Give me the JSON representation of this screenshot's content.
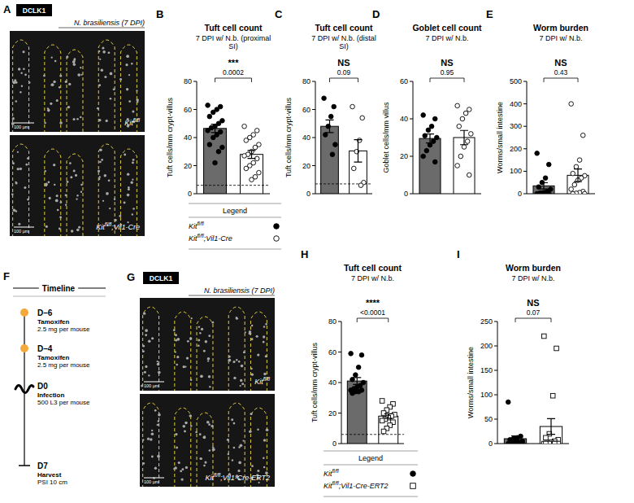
{
  "images": [
    {
      "letter": "A",
      "stain": "DCLK1",
      "title": "N. brasiliensis (7 DPI)",
      "panels": [
        {
          "label": {
            "base": "Kit",
            "sup": "fl/fl"
          },
          "scale": "100 µm"
        },
        {
          "label": {
            "base": "Kit",
            "sup": "fl/fl",
            "rest": ";Vil1-Cre"
          },
          "scale": "100 µm"
        }
      ]
    },
    {
      "letter": "G",
      "stain": "DCLK1",
      "title": "N. brasiliensis (7 DPI)",
      "panels": [
        {
          "label": {
            "base": "Kit",
            "sup": "fl/fl"
          },
          "scale": "100 µm"
        },
        {
          "label": {
            "base": "Kit",
            "sup": "fl/fl",
            "rest": ";Vil1-Cre-ERT2"
          },
          "scale": "100 µm"
        }
      ]
    }
  ],
  "timeline": {
    "letter": "F",
    "title": "Timeline",
    "events": [
      {
        "day": "D–6",
        "label": "Tamoxifen",
        "detail": "2.5 mg per mouse",
        "marker": "circle",
        "color": "#f5a93a"
      },
      {
        "day": "D–4",
        "label": "Tamoxifen",
        "detail": "2.5 mg per mouse",
        "marker": "circle",
        "color": "#f5a93a"
      },
      {
        "day": "D0",
        "label": "Infection",
        "detail": "500 L3 per mouse",
        "marker": "worm",
        "color": "#000000"
      },
      {
        "day": "D7",
        "label": "Harvest",
        "detail": "PSI 10 cm",
        "marker": "bar",
        "color": "#000000"
      }
    ]
  },
  "legends": [
    {
      "title": "Legend",
      "entries": [
        {
          "label": {
            "base": "Kit",
            "sup": "fl/fl"
          },
          "marker": "circle",
          "color": "#000000"
        },
        {
          "label": {
            "base": "Kit",
            "sup": "fl/fl",
            "rest": ";Vil1-Cre"
          },
          "marker": "circle",
          "color": "#ffffff"
        }
      ]
    },
    {
      "title": "Legend",
      "entries": [
        {
          "label": {
            "base": "Kit",
            "sup": "fl/fl"
          },
          "marker": "circle",
          "color": "#000000"
        },
        {
          "label": {
            "base": "Kit",
            "sup": "fl/fl",
            "rest": ";Vil1-Cre-ERT2"
          },
          "marker": "square",
          "color": "#ffffff"
        }
      ]
    }
  ],
  "chart_data": [
    {
      "letter": "B",
      "type": "bar",
      "title": "Tuft cell count",
      "subtitle": "7 DPI w/ N.b. (proximal SI)",
      "y_label": "Tuft cells/mm crypt-villus",
      "categories": [
        null,
        null
      ],
      "values": [
        46.5,
        28
      ],
      "errors": [
        3,
        2.8
      ],
      "colors": [
        "#6b6b6b",
        "#ffffff"
      ],
      "points": [
        [
          63,
          62,
          60,
          58,
          55,
          52,
          50,
          48,
          47,
          45,
          44,
          42,
          40,
          35,
          33,
          30,
          22
        ],
        [
          48,
          45,
          42,
          40,
          38,
          35,
          33,
          30,
          28,
          27,
          25,
          22,
          20,
          18,
          15,
          12,
          10
        ]
      ],
      "baseline": 6,
      "significance": "***",
      "p_value": "0.0002",
      "ylim": [
        0,
        80
      ],
      "yticks": [
        0,
        20,
        40,
        60,
        80
      ],
      "tick_labels": "y"
    },
    {
      "letter": "C",
      "type": "bar",
      "title": "Tuft cell count",
      "subtitle": "7 DPI w/ N.b. (distal SI)",
      "y_label": "Tuft cells/mm crypt-villus",
      "categories": [
        null,
        null
      ],
      "values": [
        48,
        30.5
      ],
      "errors": [
        4.5,
        8
      ],
      "colors": [
        "#6b6b6b",
        "#ffffff"
      ],
      "points": [
        [
          68,
          62,
          55,
          48,
          42,
          35,
          28
        ],
        [
          62,
          54,
          38,
          30,
          18,
          8,
          6
        ]
      ],
      "baseline": 7,
      "significance": "NS",
      "p_value": "0.09",
      "ylim": [
        0,
        80
      ],
      "yticks": [
        0,
        20,
        40,
        60,
        80
      ],
      "tick_labels": "y"
    },
    {
      "letter": "D",
      "type": "bar",
      "title": "Goblet cell count",
      "subtitle": "7 DPI w/ N.b.",
      "y_label": "Goblet cells/mm villus",
      "categories": [
        null,
        null
      ],
      "values": [
        29.5,
        30
      ],
      "errors": [
        2.4,
        3.8
      ],
      "colors": [
        "#6b6b6b",
        "#ffffff"
      ],
      "points": [
        [
          42,
          40,
          36,
          34,
          31,
          30,
          28,
          26,
          23,
          20,
          17
        ],
        [
          47,
          45,
          43,
          40,
          36,
          32,
          28,
          25,
          20,
          15,
          10
        ]
      ],
      "significance": "NS",
      "p_value": "0.95",
      "ylim": [
        0,
        60
      ],
      "yticks": [
        0,
        20,
        40,
        60
      ],
      "tick_labels": "y"
    },
    {
      "letter": "E",
      "type": "bar",
      "title": "Worm burden",
      "subtitle": "7 DPI w/ N.b.",
      "y_label": "Worms/small intestine",
      "categories": [
        null,
        null
      ],
      "values": [
        35,
        82
      ],
      "errors": [
        14,
        28
      ],
      "colors": [
        "#6b6b6b",
        "#ffffff"
      ],
      "points": [
        [
          180,
          130,
          70,
          50,
          30,
          20,
          10,
          5,
          3,
          0,
          0,
          0,
          0,
          0
        ],
        [
          400,
          260,
          150,
          120,
          90,
          80,
          70,
          60,
          40,
          20,
          10,
          5,
          2,
          0,
          0
        ]
      ],
      "significance": "NS",
      "p_value": "0.43",
      "ylim": [
        0,
        500
      ],
      "yticks": [
        0,
        100,
        200,
        300,
        400,
        500
      ],
      "tick_labels": "y"
    },
    {
      "letter": "H",
      "type": "bar",
      "title": "Tuft cell count",
      "subtitle": "7 DPI w/ N.b.",
      "y_label": "Tuft cells/mm crypt-villus",
      "categories": [
        null,
        null
      ],
      "values": [
        41,
        18
      ],
      "errors": [
        2.3,
        1.5
      ],
      "colors": [
        "#6b6b6b",
        "#ffffff"
      ],
      "points": [
        [
          59,
          58,
          50,
          45,
          42,
          40,
          38,
          37,
          36,
          35,
          35,
          34,
          34,
          33
        ],
        [
          28,
          26,
          24,
          22,
          20,
          19,
          18,
          17,
          16,
          15,
          14,
          12,
          10,
          8
        ]
      ],
      "baseline": 6,
      "significance": "****",
      "p_value": "<0.0001",
      "ylim": [
        0,
        80
      ],
      "yticks": [
        0,
        20,
        40,
        60,
        80
      ],
      "tick_labels": "y"
    },
    {
      "letter": "I",
      "type": "bar",
      "title": "Worm burden",
      "subtitle": "7 DPI w/ N.b.",
      "y_label": "Worms/small intestine",
      "categories": [
        null,
        null
      ],
      "values": [
        10,
        35
      ],
      "errors": [
        5.5,
        16
      ],
      "colors": [
        "#6b6b6b",
        "#ffffff"
      ],
      "points": [
        [
          85,
          15,
          12,
          10,
          8,
          5,
          3,
          2,
          0,
          0,
          0,
          0,
          0,
          0,
          0
        ],
        [
          220,
          195,
          98,
          20,
          12,
          8,
          5,
          3,
          0,
          0,
          0,
          0,
          0,
          0,
          0,
          0
        ]
      ],
      "significance": "NS",
      "p_value": "0.07",
      "ylim": [
        0,
        250
      ],
      "yticks": [
        0,
        50,
        100,
        150,
        200,
        250
      ],
      "tick_labels": "y"
    }
  ]
}
